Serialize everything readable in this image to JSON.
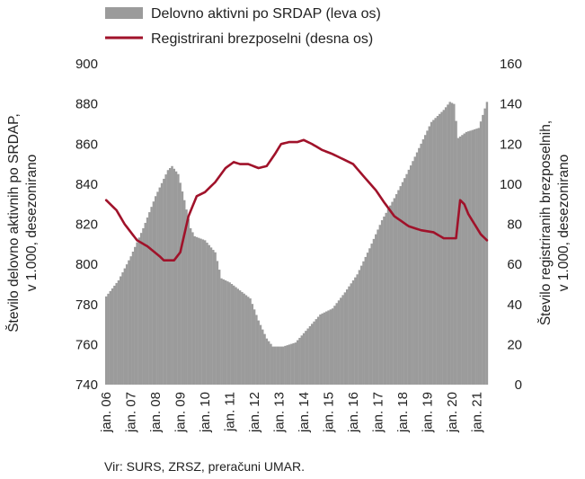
{
  "chart_data": {
    "type": "bar+line",
    "legend": {
      "placement": "top",
      "bars_label": "Delovno aktivni po SRDAP (leva os)",
      "line_label": "Registrirani brezposelni (desna os)"
    },
    "colors": {
      "bars": "#9b9b9b",
      "line": "#a0122a"
    },
    "left_axis": {
      "label_lines": [
        "Število delovno aktivnih po SRDAP,",
        "v 1.000, desezonirano"
      ],
      "min": 740,
      "max": 900,
      "ticks": [
        "900",
        "880",
        "860",
        "840",
        "820",
        "800",
        "780",
        "760",
        "740"
      ]
    },
    "right_axis": {
      "label_lines": [
        "Število registriranih brezposelnih,",
        "v 1.000, desezonirano"
      ],
      "min": 0,
      "max": 160,
      "ticks": [
        "160",
        "140",
        "120",
        "100",
        "80",
        "60",
        "40",
        "20",
        "0"
      ]
    },
    "x_axis": {
      "start": "2006-01",
      "end": "2021-06",
      "tick_labels": [
        "jan. 06",
        "jan. 07",
        "jan. 08",
        "jan. 09",
        "jan. 10",
        "jan. 11",
        "jan. 12",
        "jan. 13",
        "jan. 14",
        "jan. 15",
        "jan. 16",
        "jan. 17",
        "jan. 18",
        "jan. 19",
        "jan. 20",
        "jan. 21"
      ]
    },
    "series": [
      {
        "name": "Delovno aktivni po SRDAP (leva os)",
        "axis": "left",
        "kind": "bar",
        "keypoints": [
          [
            "2006-01",
            784
          ],
          [
            "2006-07",
            792
          ],
          [
            "2007-01",
            804
          ],
          [
            "2007-07",
            818
          ],
          [
            "2008-01",
            834
          ],
          [
            "2008-07",
            847
          ],
          [
            "2008-09",
            849
          ],
          [
            "2008-12",
            845
          ],
          [
            "2009-03",
            832
          ],
          [
            "2009-06",
            818
          ],
          [
            "2009-08",
            814
          ],
          [
            "2010-01",
            812
          ],
          [
            "2010-06",
            806
          ],
          [
            "2010-09",
            793
          ],
          [
            "2011-01",
            791
          ],
          [
            "2011-06",
            787
          ],
          [
            "2011-11",
            783
          ],
          [
            "2012-03",
            772
          ],
          [
            "2012-07",
            763
          ],
          [
            "2012-10",
            759
          ],
          [
            "2013-03",
            759
          ],
          [
            "2013-09",
            761
          ],
          [
            "2014-03",
            768
          ],
          [
            "2014-09",
            775
          ],
          [
            "2015-03",
            778
          ],
          [
            "2015-09",
            786
          ],
          [
            "2016-03",
            795
          ],
          [
            "2016-09",
            808
          ],
          [
            "2017-03",
            822
          ],
          [
            "2017-09",
            833
          ],
          [
            "2018-03",
            845
          ],
          [
            "2018-09",
            858
          ],
          [
            "2019-03",
            871
          ],
          [
            "2019-09",
            877
          ],
          [
            "2019-12",
            881
          ],
          [
            "2020-02",
            880
          ],
          [
            "2020-04",
            863
          ],
          [
            "2020-08",
            866
          ],
          [
            "2020-11",
            867
          ],
          [
            "2021-02",
            868
          ],
          [
            "2021-06",
            881
          ]
        ]
      },
      {
        "name": "Registrirani brezposelni (desna os)",
        "axis": "right",
        "kind": "line",
        "keypoints": [
          [
            "2006-01",
            92
          ],
          [
            "2006-06",
            87
          ],
          [
            "2006-10",
            80
          ],
          [
            "2007-04",
            72
          ],
          [
            "2007-09",
            69
          ],
          [
            "2008-03",
            64
          ],
          [
            "2008-05",
            62
          ],
          [
            "2008-10",
            62
          ],
          [
            "2009-01",
            66
          ],
          [
            "2009-05",
            84
          ],
          [
            "2009-09",
            94
          ],
          [
            "2010-01",
            96
          ],
          [
            "2010-06",
            101
          ],
          [
            "2010-11",
            108
          ],
          [
            "2011-03",
            111
          ],
          [
            "2011-06",
            110
          ],
          [
            "2011-10",
            110
          ],
          [
            "2012-03",
            108
          ],
          [
            "2012-07",
            109
          ],
          [
            "2012-11",
            115
          ],
          [
            "2013-02",
            120
          ],
          [
            "2013-06",
            121
          ],
          [
            "2013-10",
            121
          ],
          [
            "2014-01",
            122
          ],
          [
            "2014-05",
            120
          ],
          [
            "2014-10",
            117
          ],
          [
            "2015-03",
            115
          ],
          [
            "2015-07",
            113
          ],
          [
            "2016-01",
            110
          ],
          [
            "2016-06",
            104
          ],
          [
            "2016-12",
            97
          ],
          [
            "2017-04",
            91
          ],
          [
            "2017-09",
            84
          ],
          [
            "2018-04",
            79
          ],
          [
            "2018-10",
            77
          ],
          [
            "2019-04",
            76
          ],
          [
            "2019-09",
            73
          ],
          [
            "2020-01",
            73
          ],
          [
            "2020-03",
            73
          ],
          [
            "2020-05",
            92
          ],
          [
            "2020-07",
            90
          ],
          [
            "2020-09",
            85
          ],
          [
            "2020-12",
            80
          ],
          [
            "2021-03",
            75
          ],
          [
            "2021-06",
            72
          ]
        ]
      }
    ]
  },
  "source_note": "Vir: SURS, ZRSZ, preračuni UMAR."
}
